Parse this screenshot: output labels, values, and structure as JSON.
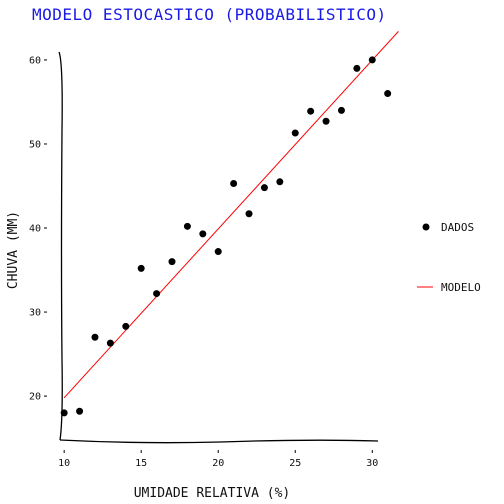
{
  "chart_data": {
    "type": "scatter",
    "title": "MODELO ESTOCASTICO (PROBABILISTICO)",
    "xlabel": "UMIDADE RELATIVA (%)",
    "ylabel": "CHUVA (MM)",
    "xlim": [
      9.6,
      31.8
    ],
    "ylim": [
      14.3,
      63.8
    ],
    "xticks": [
      10,
      15,
      20,
      25,
      30
    ],
    "yticks": [
      20,
      30,
      40,
      50,
      60
    ],
    "grid": false,
    "legend_position": "right",
    "colors": {
      "title": "#1a1ae6",
      "points": "#000000",
      "line": "#ff0000"
    },
    "series": [
      {
        "name": "DADOS",
        "kind": "points",
        "x": [
          10,
          11,
          12,
          13,
          14,
          15,
          16,
          17,
          18,
          19,
          20,
          21,
          22,
          23,
          24,
          25,
          26,
          27,
          28,
          29,
          30,
          31
        ],
        "y": [
          18.0,
          18.2,
          27.0,
          26.3,
          28.3,
          35.2,
          32.2,
          36.0,
          40.2,
          39.3,
          37.2,
          45.3,
          41.7,
          44.8,
          45.5,
          51.3,
          53.9,
          52.7,
          54.0,
          59.0,
          60.0,
          56.0
        ]
      },
      {
        "name": "MODELO",
        "kind": "line",
        "x": [
          10,
          31.7
        ],
        "y": [
          19.8,
          63.4
        ]
      }
    ]
  }
}
